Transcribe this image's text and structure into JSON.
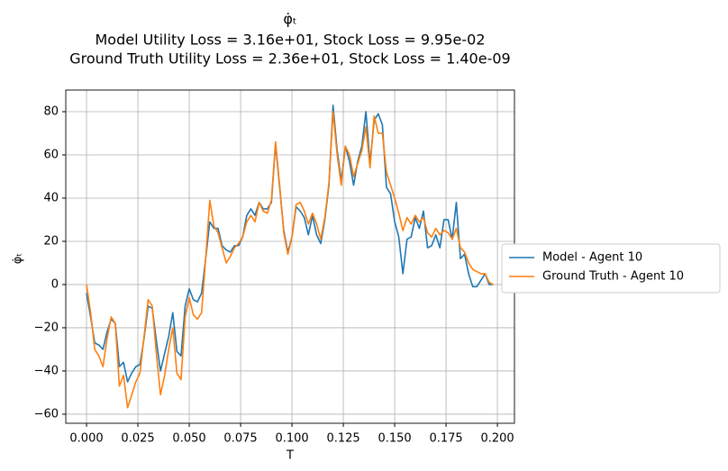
{
  "chart_data": {
    "type": "line",
    "title": [
      "φ̇ₜ",
      "Model Utility Loss = 3.16e+01, Stock Loss = 9.95e-02",
      "Ground Truth Utility Loss = 2.36e+01, Stock Loss = 1.40e-09"
    ],
    "xlabel": "T",
    "ylabel": "φ̇ₜ",
    "x": [
      0.0,
      0.002,
      0.004,
      0.006,
      0.008,
      0.01,
      0.012,
      0.014,
      0.016,
      0.018,
      0.02,
      0.022,
      0.024,
      0.026,
      0.028,
      0.03,
      0.032,
      0.034,
      0.036,
      0.038,
      0.04,
      0.042,
      0.044,
      0.046,
      0.048,
      0.05,
      0.052,
      0.054,
      0.056,
      0.058,
      0.06,
      0.062,
      0.064,
      0.066,
      0.068,
      0.07,
      0.072,
      0.074,
      0.076,
      0.078,
      0.08,
      0.082,
      0.084,
      0.086,
      0.088,
      0.09,
      0.092,
      0.094,
      0.096,
      0.098,
      0.1,
      0.102,
      0.104,
      0.106,
      0.108,
      0.11,
      0.112,
      0.114,
      0.116,
      0.118,
      0.12,
      0.122,
      0.124,
      0.126,
      0.128,
      0.13,
      0.132,
      0.134,
      0.136,
      0.138,
      0.14,
      0.142,
      0.144,
      0.146,
      0.148,
      0.15,
      0.152,
      0.154,
      0.156,
      0.158,
      0.16,
      0.162,
      0.164,
      0.166,
      0.168,
      0.17,
      0.172,
      0.174,
      0.176,
      0.178,
      0.18,
      0.182,
      0.184,
      0.186,
      0.188,
      0.19,
      0.192,
      0.194,
      0.196,
      0.198
    ],
    "series": [
      {
        "name": "Model - Agent 10",
        "color": "#1f77b4",
        "values": [
          -4,
          -15,
          -27,
          -28,
          -30,
          -22,
          -16,
          -18,
          -38,
          -36,
          -45,
          -41,
          -38,
          -37,
          -25,
          -10,
          -11,
          -26,
          -40,
          -32,
          -24,
          -13,
          -31,
          -33,
          -10,
          -2,
          -7,
          -8,
          -4,
          12,
          29,
          26,
          26,
          18,
          16,
          15,
          18,
          18,
          22,
          32,
          35,
          32,
          38,
          35,
          35,
          38,
          65,
          45,
          25,
          15,
          22,
          36,
          34,
          31,
          23,
          32,
          23,
          19,
          30,
          46,
          83,
          62,
          48,
          64,
          57,
          46,
          57,
          64,
          80,
          56,
          76,
          79,
          74,
          45,
          42,
          29,
          22,
          5,
          21,
          22,
          31,
          26,
          34,
          17,
          18,
          23,
          17,
          30,
          30,
          21,
          38,
          12,
          14,
          5,
          -1,
          -1,
          2,
          5,
          0,
          0
        ]
      },
      {
        "name": "Ground Truth - Agent 10",
        "color": "#ff7f0e",
        "values": [
          0,
          -13,
          -30,
          -33,
          -38,
          -25,
          -15,
          -18,
          -47,
          -42,
          -57,
          -51,
          -45,
          -41,
          -24,
          -7,
          -10,
          -32,
          -51,
          -42,
          -30,
          -20,
          -41,
          -44,
          -15,
          -6,
          -14,
          -16,
          -13,
          12,
          39,
          27,
          24,
          17,
          10,
          13,
          17,
          19,
          22,
          29,
          32,
          29,
          38,
          34,
          33,
          39,
          66,
          46,
          24,
          14,
          22,
          37,
          38,
          34,
          28,
          33,
          28,
          21,
          31,
          47,
          80,
          60,
          46,
          64,
          60,
          50,
          56,
          62,
          73,
          54,
          78,
          70,
          70,
          52,
          46,
          40,
          33,
          25,
          31,
          28,
          32,
          29,
          31,
          24,
          22,
          26,
          23,
          25,
          24,
          21,
          26,
          17,
          15,
          10,
          7,
          6,
          5,
          5,
          1,
          0
        ]
      }
    ],
    "xlim": [
      -0.0101,
      0.2083
    ],
    "ylim": [
      -64.2,
      90
    ],
    "xticks": [
      {
        "value": 0,
        "label": "0.000"
      },
      {
        "value": 0.025,
        "label": "0.025"
      },
      {
        "value": 0.05,
        "label": "0.050"
      },
      {
        "value": 0.075,
        "label": "0.075"
      },
      {
        "value": 0.1,
        "label": "0.100"
      },
      {
        "value": 0.125,
        "label": "0.125"
      },
      {
        "value": 0.15,
        "label": "0.150"
      },
      {
        "value": 0.175,
        "label": "0.175"
      },
      {
        "value": 0.2,
        "label": "0.200"
      }
    ],
    "yticks": [
      {
        "value": -60,
        "label": "−60"
      },
      {
        "value": -40,
        "label": "−40"
      },
      {
        "value": -20,
        "label": "−20"
      },
      0,
      20,
      40,
      60,
      80
    ],
    "grid": true,
    "legend": "outside-right"
  }
}
